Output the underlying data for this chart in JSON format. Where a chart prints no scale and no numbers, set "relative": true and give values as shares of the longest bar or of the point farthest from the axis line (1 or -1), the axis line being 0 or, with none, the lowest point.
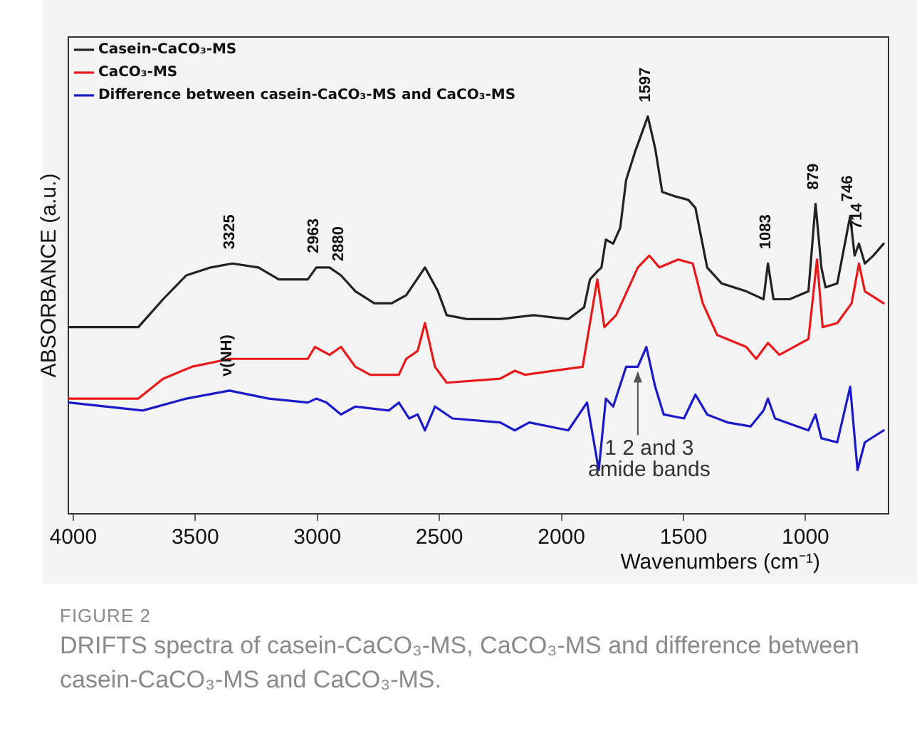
{
  "chart_data": {
    "type": "line",
    "relative": true,
    "title": "FIGURE 2",
    "subtitle": "DRIFTS spectra of casein-CaCO₃-MS, CaCO₃-MS and difference between casein-CaCO₃-MS and CaCO₃-MS.",
    "xlabel": "Wavenumbers (cm⁻¹)",
    "ylabel": "ABSORBANCE (a.u.)",
    "xlim": [
      4020,
      660
    ],
    "xticks": [
      4000,
      3500,
      3000,
      2500,
      2000,
      1500,
      1000
    ],
    "grid": false,
    "legend": "top left",
    "marker": "none",
    "line_style": "solid",
    "series": [
      {
        "name": "Casein-CaCO₃-MS",
        "color": "#222222",
        "x": [
          4018,
          3733,
          3632,
          3537,
          3437,
          3348,
          3241,
          3158,
          3039,
          3004,
          2950,
          2903,
          2844,
          2767,
          2695,
          2666,
          2636,
          2559,
          2506,
          2470,
          2387,
          2251,
          2114,
          1972,
          1907,
          1883,
          1853,
          1836,
          1818,
          1788,
          1759,
          1735,
          1699,
          1646,
          1616,
          1587,
          1540,
          1480,
          1451,
          1403,
          1344,
          1243,
          1172,
          1154,
          1131,
          1065,
          988,
          959,
          935,
          918,
          870,
          817,
          799,
          781,
          757,
          722,
          680
        ],
        "values": [
          0.47,
          0.47,
          0.54,
          0.6,
          0.62,
          0.63,
          0.62,
          0.59,
          0.59,
          0.62,
          0.62,
          0.6,
          0.56,
          0.53,
          0.53,
          0.54,
          0.55,
          0.62,
          0.56,
          0.5,
          0.49,
          0.49,
          0.5,
          0.49,
          0.52,
          0.59,
          0.61,
          0.62,
          0.69,
          0.68,
          0.72,
          0.84,
          0.91,
          1.0,
          0.92,
          0.81,
          0.8,
          0.79,
          0.77,
          0.62,
          0.58,
          0.56,
          0.54,
          0.63,
          0.54,
          0.54,
          0.56,
          0.78,
          0.62,
          0.57,
          0.58,
          0.75,
          0.65,
          0.68,
          0.63,
          0.65,
          0.68
        ]
      },
      {
        "name": "CaCO₃-MS",
        "color": "#e8191b",
        "x": [
          4018,
          3733,
          3632,
          3514,
          3360,
          3039,
          3010,
          2950,
          2903,
          2844,
          2784,
          2666,
          2636,
          2589,
          2559,
          2518,
          2470,
          2251,
          2191,
          2150,
          1913,
          1853,
          1824,
          1776,
          1687,
          1640,
          1599,
          1522,
          1462,
          1421,
          1362,
          1243,
          1202,
          1154,
          1107,
          988,
          953,
          930,
          870,
          811,
          781,
          757,
          680
        ],
        "values": [
          0.29,
          0.29,
          0.34,
          0.37,
          0.39,
          0.39,
          0.42,
          0.4,
          0.42,
          0.37,
          0.35,
          0.35,
          0.39,
          0.41,
          0.48,
          0.37,
          0.33,
          0.34,
          0.36,
          0.35,
          0.37,
          0.59,
          0.47,
          0.5,
          0.62,
          0.65,
          0.62,
          0.64,
          0.63,
          0.53,
          0.45,
          0.42,
          0.39,
          0.43,
          0.4,
          0.44,
          0.64,
          0.47,
          0.48,
          0.53,
          0.63,
          0.56,
          0.53
        ]
      },
      {
        "name": "Difference between casein-CaCO₃-MS and CaCO₃-MS",
        "color": "#1a1ac8",
        "x": [
          4018,
          3715,
          3537,
          3360,
          3199,
          3039,
          3004,
          2962,
          2903,
          2844,
          2707,
          2666,
          2624,
          2589,
          2559,
          2518,
          2446,
          2251,
          2191,
          2132,
          1972,
          1895,
          1847,
          1818,
          1788,
          1735,
          1687,
          1652,
          1616,
          1581,
          1498,
          1451,
          1403,
          1320,
          1225,
          1172,
          1154,
          1125,
          988,
          959,
          935,
          870,
          817,
          787,
          757,
          680
        ],
        "values": [
          0.28,
          0.26,
          0.29,
          0.31,
          0.29,
          0.28,
          0.29,
          0.28,
          0.25,
          0.27,
          0.26,
          0.28,
          0.24,
          0.25,
          0.21,
          0.27,
          0.24,
          0.23,
          0.21,
          0.23,
          0.21,
          0.28,
          0.11,
          0.29,
          0.27,
          0.37,
          0.37,
          0.42,
          0.32,
          0.25,
          0.24,
          0.3,
          0.25,
          0.23,
          0.22,
          0.26,
          0.29,
          0.24,
          0.21,
          0.25,
          0.19,
          0.18,
          0.32,
          0.11,
          0.18,
          0.21
        ]
      }
    ],
    "annotations": [
      {
        "text": "3325",
        "x": 3348,
        "y": 0.63
      },
      {
        "text": "2963",
        "x": 3004,
        "y": 0.62
      },
      {
        "text": "2880",
        "x": 2903,
        "y": 0.6
      },
      {
        "text": "1597",
        "x": 1646,
        "y": 1.0
      },
      {
        "text": "1083",
        "x": 1154,
        "y": 0.63
      },
      {
        "text": "879",
        "x": 959,
        "y": 0.78
      },
      {
        "text": "746",
        "x": 817,
        "y": 0.75
      },
      {
        "text": "714",
        "x": 781,
        "y": 0.68
      },
      {
        "text": "ν(NH)",
        "x": 3360,
        "y": 0.31
      },
      {
        "text": "1 2 and 3 amide bands",
        "x": 1687,
        "y": 0.37
      }
    ]
  }
}
